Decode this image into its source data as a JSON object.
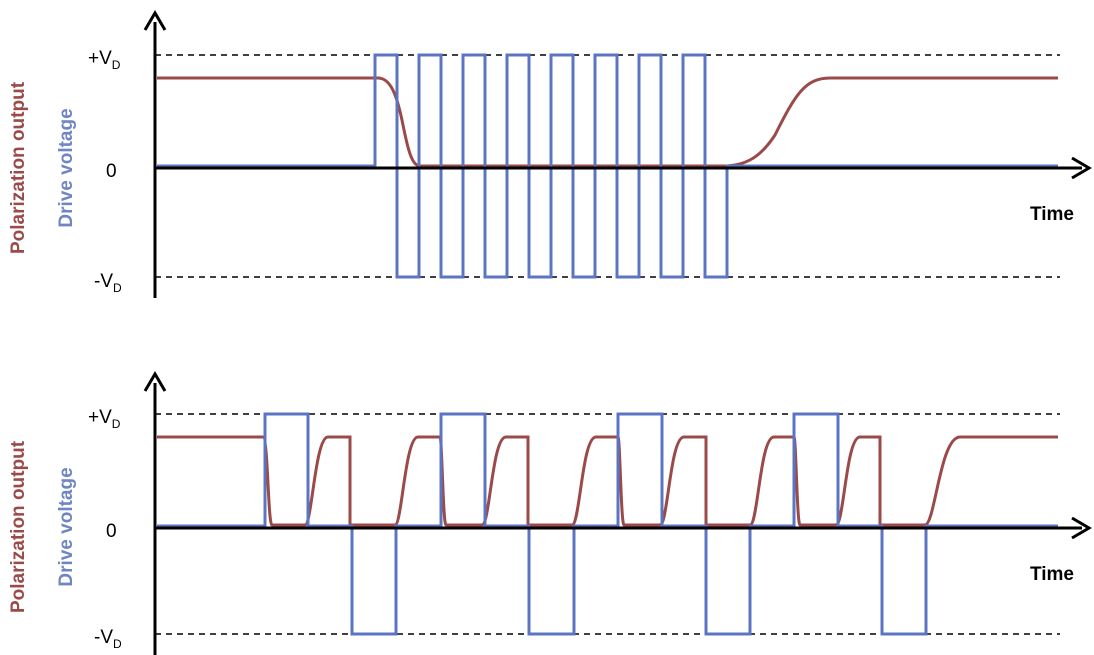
{
  "colors": {
    "polarization": "#9a4b49",
    "drive": "#5b74c4",
    "axis": "#000000",
    "dashed": "#000000"
  },
  "panels": [
    {
      "id": "top",
      "ylabel_polarization": "Polarization output",
      "ylabel_drive": "Drive voltage",
      "level_pos": "+V",
      "level_pos_sub": "D",
      "level_zero": "0",
      "level_neg": "-V",
      "level_neg_sub": "D",
      "xlabel": "Time"
    },
    {
      "id": "bottom",
      "ylabel_polarization": "Polarization output",
      "ylabel_drive": "Drive voltage",
      "level_pos": "+V",
      "level_pos_sub": "D",
      "level_zero": "0",
      "level_neg": "-V",
      "level_neg_sub": "D",
      "xlabel": "Time"
    }
  ]
}
